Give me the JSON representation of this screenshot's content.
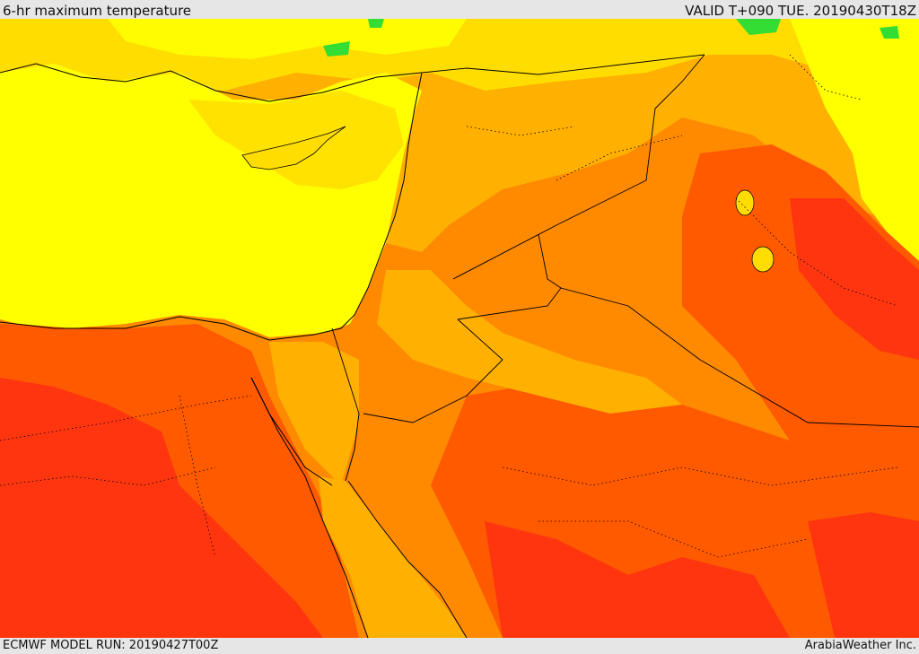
{
  "header": {
    "title": "6-hr maximum temperature",
    "valid_time": "VALID T+090 TUE. 20190430T18Z"
  },
  "footer": {
    "model_run": "ECMWF MODEL RUN: 20190427T00Z",
    "credit": "ArabiaWeather Inc."
  },
  "colors": {
    "sea_yellow": "#ffff00",
    "light_yellow": "#ffdd00",
    "gold": "#ffb000",
    "orange": "#ff8a00",
    "dark_orange": "#ff5a00",
    "red_orange": "#ff3510",
    "green": "#33dd33",
    "border": "#000000"
  }
}
